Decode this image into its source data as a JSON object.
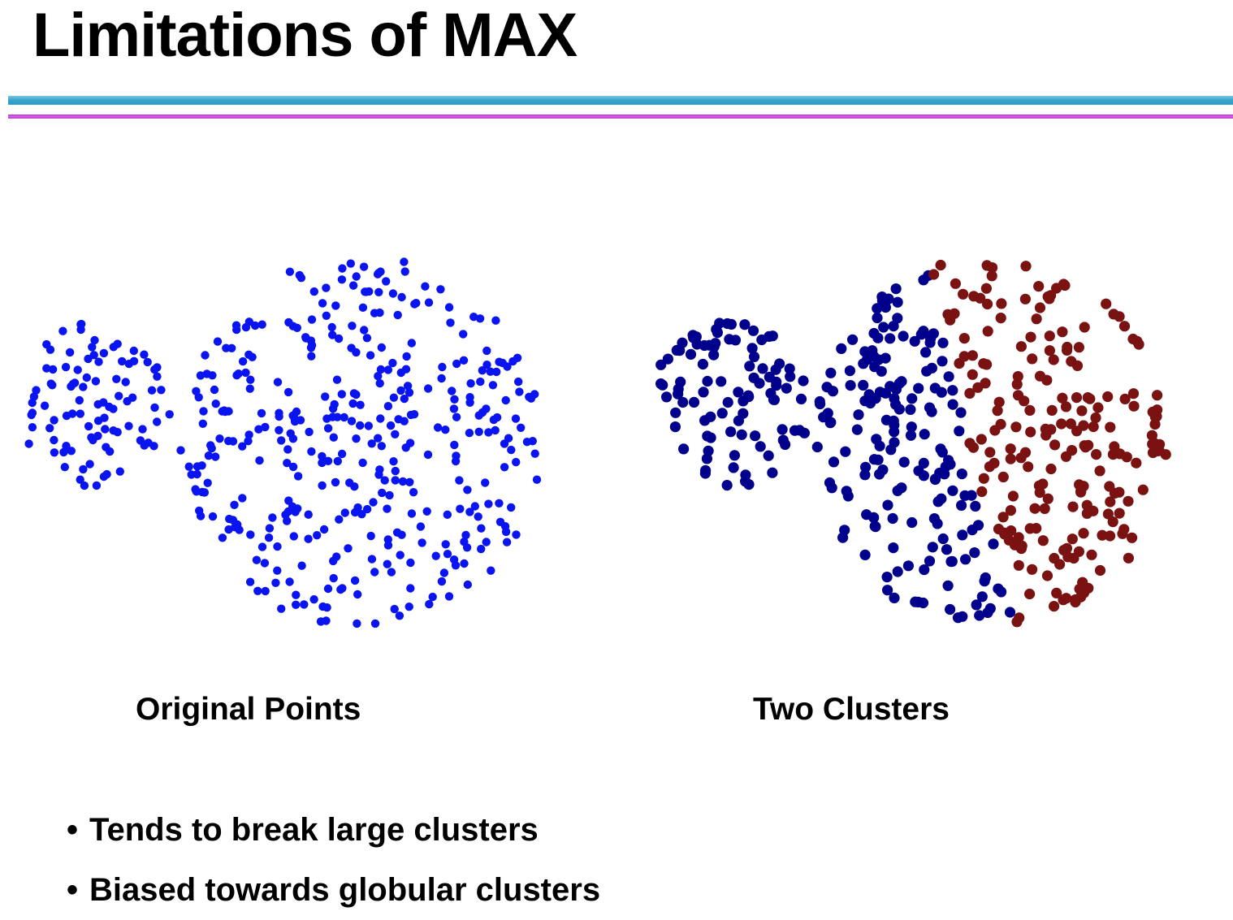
{
  "slide": {
    "title": "Limitations of MAX"
  },
  "figures": {
    "original_caption": "Original Points",
    "clusters_caption": "Two Clusters"
  },
  "bullets": [
    "Tends to break large clusters",
    "Biased towards globular clusters"
  ],
  "colors": {
    "points": "#0a14f0",
    "cluster_blue": "#00008c",
    "cluster_red": "#7a1212",
    "rule_top": "#36a6cf",
    "rule_bottom": "#d652ec"
  },
  "chart_data": [
    {
      "type": "scatter",
      "title": "",
      "note": "generated",
      "groups": [
        {
          "name": "",
          "color": "#0a14f0",
          "center": [
            -6.6,
            0.9
          ],
          "radius": 2.0,
          "count": 95,
          "seed": 11
        },
        {
          "name": "",
          "color": "#0a14f0",
          "center": [
            0,
            0
          ],
          "radius": 4.5,
          "count": 380,
          "seed": 23
        }
      ],
      "xlim": [
        -9,
        6
      ],
      "ylim": [
        -5,
        5
      ]
    },
    {
      "type": "scatter",
      "title": "",
      "note": "generated",
      "groups": [
        {
          "name": "",
          "color": "#00008c",
          "center": [
            -6.6,
            0.9
          ],
          "radius": 2.0,
          "count": 95,
          "seed": 37
        },
        {
          "name": "",
          "color": "#00008c",
          "center": [
            0,
            0
          ],
          "radius": 4.5,
          "count": 380,
          "seed": 51,
          "split": "left"
        },
        {
          "name": "",
          "color": "#7a1212",
          "center": [
            0,
            0
          ],
          "radius": 4.5,
          "count": 380,
          "seed": 51,
          "split": "right"
        }
      ],
      "xlim": [
        -9,
        6
      ],
      "ylim": [
        -5,
        5
      ]
    }
  ]
}
